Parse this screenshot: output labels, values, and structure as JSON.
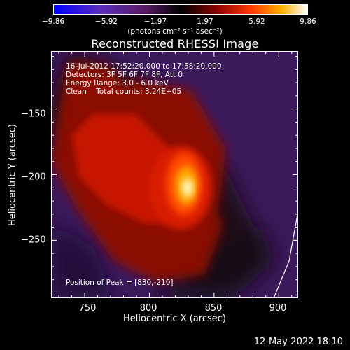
{
  "colorbar": {
    "ticks": [
      "−9.86",
      "−5.92",
      "−1.97",
      "1.97",
      "5.92",
      "9.86"
    ],
    "units": "(photons cm⁻² s⁻¹ asec⁻²)"
  },
  "title": "Reconstructed RHESSI Image",
  "info": {
    "time_range": "16-Jul-2012 17:52:20.000 to 17:58:20.000",
    "detectors": "Detectors: 3F 5F 6F 7F 8F, Att 0",
    "energy": "Energy Range: 3.0 - 6.0 keV",
    "clean": "Clean    Total counts: 3.24E+05",
    "peak": "Position of Peak = [830,-210]"
  },
  "axes": {
    "x_ticks": [
      "750",
      "800",
      "850",
      "900"
    ],
    "y_ticks": [
      "−150",
      "−200",
      "−250"
    ],
    "xlabel": "Heliocentric X (arcsec)",
    "ylabel": "Heliocentric Y (arcsec)",
    "xlim": [
      724,
      915
    ],
    "ylim": [
      -294,
      -106
    ]
  },
  "peak": {
    "x": 830,
    "y": -210
  },
  "timestamp": "12-May-2022 18:10"
}
